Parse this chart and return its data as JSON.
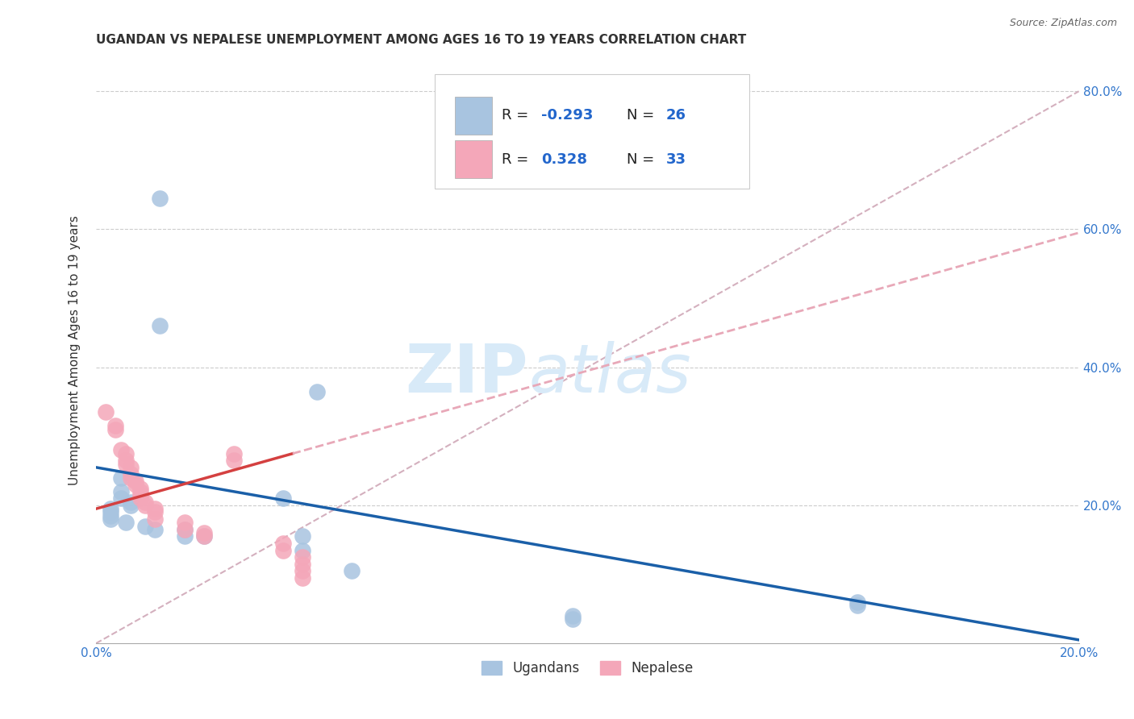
{
  "title": "UGANDAN VS NEPALESE UNEMPLOYMENT AMONG AGES 16 TO 19 YEARS CORRELATION CHART",
  "source": "Source: ZipAtlas.com",
  "ylabel": "Unemployment Among Ages 16 to 19 years",
  "xlim": [
    0.0,
    0.2
  ],
  "ylim": [
    0.0,
    0.85
  ],
  "xticks": [
    0.0,
    0.05,
    0.1,
    0.15,
    0.2
  ],
  "yticks": [
    0.0,
    0.2,
    0.4,
    0.6,
    0.8
  ],
  "uganda_color": "#a8c4e0",
  "nepal_color": "#f4a7b9",
  "uganda_line_color": "#1a5fa8",
  "nepal_line_color": "#d44040",
  "nepal_dashed_color": "#e8a8b8",
  "diagonal_color": "#d4b0be",
  "watermark_zip": "ZIP",
  "watermark_atlas": "atlas",
  "watermark_color": "#d8eaf8",
  "uganda_scatter": [
    [
      0.013,
      0.645
    ],
    [
      0.013,
      0.46
    ],
    [
      0.045,
      0.365
    ],
    [
      0.005,
      0.24
    ],
    [
      0.005,
      0.22
    ],
    [
      0.005,
      0.21
    ],
    [
      0.007,
      0.205
    ],
    [
      0.007,
      0.2
    ],
    [
      0.003,
      0.195
    ],
    [
      0.003,
      0.19
    ],
    [
      0.003,
      0.185
    ],
    [
      0.003,
      0.18
    ],
    [
      0.006,
      0.175
    ],
    [
      0.01,
      0.17
    ],
    [
      0.012,
      0.165
    ],
    [
      0.018,
      0.165
    ],
    [
      0.018,
      0.155
    ],
    [
      0.022,
      0.155
    ],
    [
      0.038,
      0.21
    ],
    [
      0.042,
      0.155
    ],
    [
      0.042,
      0.135
    ],
    [
      0.052,
      0.105
    ],
    [
      0.097,
      0.04
    ],
    [
      0.097,
      0.035
    ],
    [
      0.155,
      0.06
    ],
    [
      0.155,
      0.055
    ]
  ],
  "nepal_scatter": [
    [
      0.002,
      0.335
    ],
    [
      0.004,
      0.315
    ],
    [
      0.004,
      0.31
    ],
    [
      0.005,
      0.28
    ],
    [
      0.006,
      0.275
    ],
    [
      0.006,
      0.265
    ],
    [
      0.006,
      0.26
    ],
    [
      0.007,
      0.255
    ],
    [
      0.007,
      0.245
    ],
    [
      0.007,
      0.24
    ],
    [
      0.008,
      0.235
    ],
    [
      0.008,
      0.23
    ],
    [
      0.009,
      0.225
    ],
    [
      0.009,
      0.22
    ],
    [
      0.009,
      0.215
    ],
    [
      0.009,
      0.21
    ],
    [
      0.01,
      0.205
    ],
    [
      0.01,
      0.2
    ],
    [
      0.012,
      0.195
    ],
    [
      0.012,
      0.19
    ],
    [
      0.012,
      0.18
    ],
    [
      0.018,
      0.175
    ],
    [
      0.018,
      0.165
    ],
    [
      0.022,
      0.16
    ],
    [
      0.022,
      0.155
    ],
    [
      0.028,
      0.275
    ],
    [
      0.028,
      0.265
    ],
    [
      0.038,
      0.145
    ],
    [
      0.038,
      0.135
    ],
    [
      0.042,
      0.125
    ],
    [
      0.042,
      0.115
    ],
    [
      0.042,
      0.105
    ],
    [
      0.042,
      0.095
    ]
  ],
  "uganda_line": {
    "x0": 0.0,
    "x1": 0.2,
    "y0": 0.255,
    "y1": 0.005
  },
  "nepal_line_solid": {
    "x0": 0.0,
    "x1": 0.04,
    "y0": 0.195,
    "y1": 0.275
  },
  "nepal_line_dashed": {
    "x0": 0.04,
    "x1": 0.2,
    "y0": 0.275,
    "y1": 0.595
  },
  "diagonal_line": {
    "x0": 0.0,
    "x1": 0.2,
    "y0": 0.0,
    "y1": 0.8
  },
  "title_fontsize": 11,
  "axis_label_fontsize": 11,
  "tick_fontsize": 11,
  "source_fontsize": 9,
  "watermark_fontsize_zip": 60,
  "watermark_fontsize_atlas": 60
}
